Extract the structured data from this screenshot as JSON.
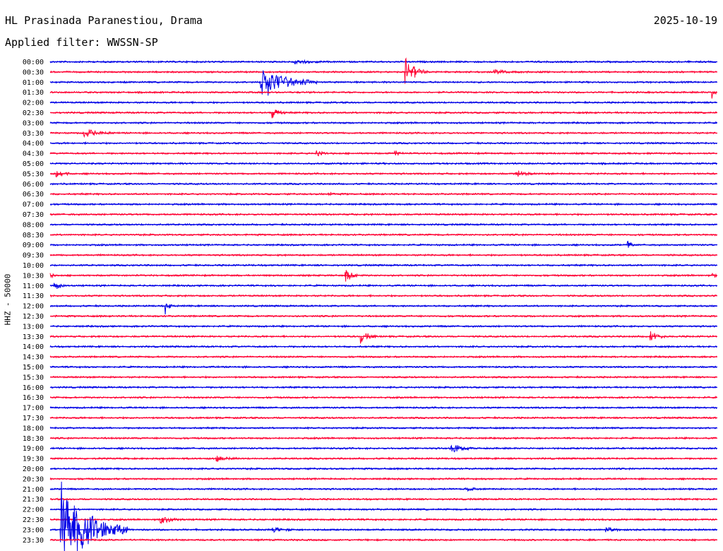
{
  "header": {
    "station": "HL Prasinada Paranestiou, Drama",
    "date": "2025-10-19",
    "filter": "Applied filter: WWSSN-SP"
  },
  "chart_data": {
    "type": "line",
    "chart_kind": "helicorder",
    "ylabel": "HHZ - 50000",
    "rows": [
      "00:00",
      "00:30",
      "01:00",
      "01:30",
      "02:00",
      "02:30",
      "03:00",
      "03:30",
      "04:00",
      "04:30",
      "05:00",
      "05:30",
      "06:00",
      "06:30",
      "07:00",
      "07:30",
      "08:00",
      "08:30",
      "09:00",
      "09:30",
      "10:00",
      "10:30",
      "11:00",
      "11:30",
      "12:00",
      "12:30",
      "13:00",
      "13:30",
      "14:00",
      "14:30",
      "15:00",
      "15:30",
      "16:00",
      "16:30",
      "17:00",
      "17:30",
      "18:00",
      "18:30",
      "19:00",
      "19:30",
      "20:00",
      "20:30",
      "21:00",
      "21:30",
      "22:00",
      "22:30",
      "23:00",
      "23:30"
    ],
    "minutes_per_row": 30,
    "series_colors": [
      "#0000e6",
      "#ff0033"
    ],
    "events": [
      {
        "row": 0,
        "minute": 11.0,
        "amplitude": 0.25,
        "duration": 1.5
      },
      {
        "row": 1,
        "minute": 16.0,
        "amplitude": 1.4,
        "duration": 1.0
      },
      {
        "row": 1,
        "minute": 20.0,
        "amplitude": 0.2,
        "duration": 1.5
      },
      {
        "row": 2,
        "minute": 9.5,
        "amplitude": 1.8,
        "duration": 2.5
      },
      {
        "row": 3,
        "minute": 29.8,
        "amplitude": 0.6,
        "duration": 0.2
      },
      {
        "row": 5,
        "minute": 10.0,
        "amplitude": 0.5,
        "duration": 0.6
      },
      {
        "row": 7,
        "minute": 1.5,
        "amplitude": 0.45,
        "duration": 1.5
      },
      {
        "row": 9,
        "minute": 12.0,
        "amplitude": 0.3,
        "duration": 0.5
      },
      {
        "row": 9,
        "minute": 15.5,
        "amplitude": 0.3,
        "duration": 0.4
      },
      {
        "row": 11,
        "minute": 0.3,
        "amplitude": 0.5,
        "duration": 0.6
      },
      {
        "row": 11,
        "minute": 21.0,
        "amplitude": 0.35,
        "duration": 0.7
      },
      {
        "row": 13,
        "minute": 12.5,
        "amplitude": 0.25,
        "duration": 0.3
      },
      {
        "row": 18,
        "minute": 26.0,
        "amplitude": 0.3,
        "duration": 0.3
      },
      {
        "row": 21,
        "minute": 13.3,
        "amplitude": 0.7,
        "duration": 0.5
      },
      {
        "row": 21,
        "minute": 0.0,
        "amplitude": 0.3,
        "duration": 0.2
      },
      {
        "row": 21,
        "minute": 29.8,
        "amplitude": 0.3,
        "duration": 0.2
      },
      {
        "row": 22,
        "minute": 0.2,
        "amplitude": 0.45,
        "duration": 0.5
      },
      {
        "row": 24,
        "minute": 5.2,
        "amplitude": 0.75,
        "duration": 0.3
      },
      {
        "row": 27,
        "minute": 14.0,
        "amplitude": 0.6,
        "duration": 0.7
      },
      {
        "row": 27,
        "minute": 27.0,
        "amplitude": 0.6,
        "duration": 0.7
      },
      {
        "row": 38,
        "minute": 18.0,
        "amplitude": 0.5,
        "duration": 1.0
      },
      {
        "row": 39,
        "minute": 7.5,
        "amplitude": 0.25,
        "duration": 1.0
      },
      {
        "row": 42,
        "minute": 18.7,
        "amplitude": 0.25,
        "duration": 0.5
      },
      {
        "row": 45,
        "minute": 5.0,
        "amplitude": 0.4,
        "duration": 1.0
      },
      {
        "row": 46,
        "minute": 0.5,
        "amplitude": 5.0,
        "duration": 3.0
      },
      {
        "row": 46,
        "minute": 10.0,
        "amplitude": 0.25,
        "duration": 1.0
      },
      {
        "row": 46,
        "minute": 25.0,
        "amplitude": 0.25,
        "duration": 0.8
      }
    ]
  }
}
